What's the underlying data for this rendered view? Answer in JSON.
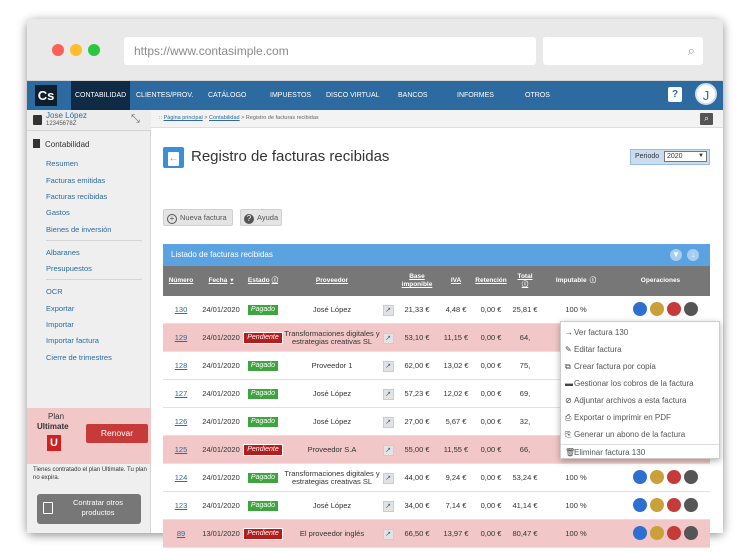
{
  "browser": {
    "url": "https://www.contasimple.com"
  },
  "topnav": {
    "logo": "Cs",
    "items": [
      "CONTABILIDAD",
      "CLIENTES/PROV.",
      "CATÁLOGO",
      "IMPUESTOS",
      "DISCO VIRTUAL",
      "BANCOS",
      "INFORMES",
      "OTROS"
    ],
    "help": "?",
    "avatar": "J"
  },
  "sidebar": {
    "user_name": "Jose López",
    "user_id": "12345678Z",
    "section": "Contabilidad",
    "items": [
      "Resumen",
      "Facturas emitidas",
      "Facturas recibidas",
      "Gastos",
      "Bienes de inversión",
      "Albaranes",
      "Presupuestos",
      "OCR",
      "Exportar",
      "Importar",
      "Importar factura",
      "Cierre de trimestres"
    ],
    "plan_label": "Plan",
    "plan_name": "Ultimate",
    "plan_badge": "U",
    "renew": "Renovar",
    "plan_note": "Tienes contratado el plan Ultimate. Tu plan no expira.",
    "contract": "Contratar otros productos"
  },
  "breadcrumb": {
    "sep": ":: ",
    "c1": "Página principal",
    "gt": " > ",
    "c2": "Contabilidad",
    "c3": "Registro de facturas recibidas"
  },
  "page": {
    "title": "Registro de facturas recibidas",
    "periodo_label": "Periodo",
    "periodo_value": "2020",
    "nueva": "Nueva factura",
    "ayuda": "Ayuda",
    "list_title": "Listado de facturas recibidas"
  },
  "table": {
    "headers": {
      "numero": "Número",
      "fecha": "Fecha",
      "estado": "Estado",
      "proveedor": "Proveedor",
      "base": "Base imponible",
      "iva": "IVA",
      "retencion": "Retención",
      "total": "Total",
      "imputable": "Imputable",
      "operaciones": "Operaciones"
    },
    "rows": [
      {
        "num": "130",
        "fecha": "24/01/2020",
        "estado": "Pagado",
        "prov": "José López",
        "base": "21,33 €",
        "iva": "4,48 €",
        "ret": "0,00 €",
        "total": "25,81 €",
        "imp": "100 %",
        "pend": false
      },
      {
        "num": "129",
        "fecha": "24/01/2020",
        "estado": "Pendiente",
        "prov": "Transformaciones digitales y estrategias creativas SL",
        "base": "53,10 €",
        "iva": "11,15 €",
        "ret": "0,00 €",
        "total": "64,",
        "imp": "",
        "pend": true
      },
      {
        "num": "128",
        "fecha": "24/01/2020",
        "estado": "Pagado",
        "prov": "Proveedor 1",
        "base": "62,00 €",
        "iva": "13,02 €",
        "ret": "0,00 €",
        "total": "75,",
        "imp": "",
        "pend": false
      },
      {
        "num": "127",
        "fecha": "24/01/2020",
        "estado": "Pagado",
        "prov": "José López",
        "base": "57,23 €",
        "iva": "12,02 €",
        "ret": "0,00 €",
        "total": "69,",
        "imp": "",
        "pend": false
      },
      {
        "num": "126",
        "fecha": "24/01/2020",
        "estado": "Pagado",
        "prov": "José López",
        "base": "27,00 €",
        "iva": "5,67 €",
        "ret": "0,00 €",
        "total": "32,",
        "imp": "",
        "pend": false
      },
      {
        "num": "125",
        "fecha": "24/01/2020",
        "estado": "Pendiente",
        "prov": "Proveedor S.A",
        "base": "55,00 €",
        "iva": "11,55 €",
        "ret": "0,00 €",
        "total": "66,",
        "imp": "",
        "pend": true
      },
      {
        "num": "124",
        "fecha": "24/01/2020",
        "estado": "Pagado",
        "prov": "Transformaciones digitales y estrategias creativas SL",
        "base": "44,00 €",
        "iva": "9,24 €",
        "ret": "0,00 €",
        "total": "53,24 €",
        "imp": "100 %",
        "pend": false
      },
      {
        "num": "123",
        "fecha": "24/01/2020",
        "estado": "Pagado",
        "prov": "José López",
        "base": "34,00 €",
        "iva": "7,14 €",
        "ret": "0,00 €",
        "total": "41,14 €",
        "imp": "100 %",
        "pend": false
      },
      {
        "num": "89",
        "fecha": "13/01/2020",
        "estado": "Pendiente",
        "prov": "El proveedor inglés",
        "base": "66,50 €",
        "iva": "13,97 €",
        "ret": "0,00 €",
        "total": "80,47 €",
        "imp": "100 %",
        "pend": true
      }
    ]
  },
  "dropdown": {
    "items": [
      "Ver factura 130",
      "Editar factura",
      "Crear factura por copia",
      "Gestionar los cobros de la factura",
      "Adjuntar archivos a esta factura",
      "Exportar o imprimir en PDF",
      "Generar un abono de la factura",
      "Eliminar factura 130"
    ],
    "icons": [
      "→",
      "✎",
      "⧉",
      "▬",
      "⊘",
      "⎙",
      "⎘",
      "🗑"
    ]
  },
  "colors": {
    "nav": "#2c6aa0",
    "list_header": "#5aa3e0",
    "paid": "#3fa33f",
    "pending": "#b71c1c",
    "pending_row": "#f2c7c7"
  }
}
